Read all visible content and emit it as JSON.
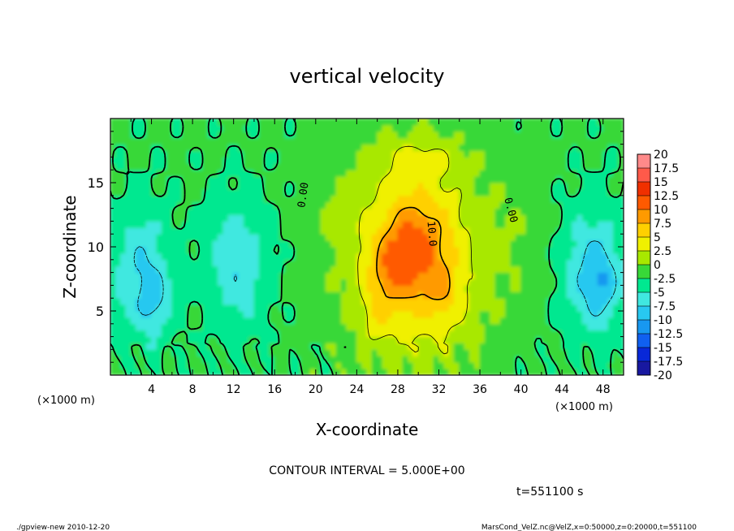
{
  "chart_data": {
    "type": "heatmap",
    "title": "vertical velocity",
    "xlabel": "X-coordinate",
    "ylabel": "Z-coordinate",
    "x_unit_left": "(×1000 m)",
    "x_unit_right": "(×1000 m)",
    "xlim": [
      0,
      50
    ],
    "ylim": [
      0,
      20
    ],
    "x_ticks": [
      4,
      8,
      12,
      16,
      20,
      24,
      28,
      32,
      36,
      40,
      44,
      48
    ],
    "y_ticks": [
      5,
      10,
      15
    ],
    "contour_interval_text": "CONTOUR INTERVAL = 5.000E+00",
    "time_text": "t=551100 s",
    "footer_left": "./gpview-new  2010-12-20",
    "footer_right": "MarsCond_VelZ.nc@VelZ,x=0:50000,z=0:20000,t=551100",
    "contour_labels": [
      {
        "text": "0.00",
        "x": 19.1,
        "z": 14.0,
        "angle": -82
      },
      {
        "text": "0.00",
        "x": 38.7,
        "z": 12.8,
        "angle": 75
      },
      {
        "text": "10.0",
        "x": 31.0,
        "z": 11.0,
        "angle": 85
      }
    ],
    "colorbar": {
      "labels": [
        "20",
        "17.5",
        "15",
        "12.5",
        "10",
        "7.5",
        "5",
        "2.5",
        "0",
        "-2.5",
        "-5",
        "-7.5",
        "-10",
        "-12.5",
        "-15",
        "-17.5",
        "-20"
      ],
      "colors": [
        "#ff8a8a",
        "#ff5a4a",
        "#f03000",
        "#ff5a00",
        "#ff9a00",
        "#ffd000",
        "#f0f000",
        "#a8e800",
        "#38d838",
        "#00e890",
        "#40e8e0",
        "#28c8f0",
        "#1898f0",
        "#1060f0",
        "#0828d8",
        "#1818a0",
        "#6a10b0"
      ]
    },
    "field_blobs": [
      {
        "x": 30.0,
        "z": 9.0,
        "rx": 7.0,
        "ry": 8.5,
        "amp": 7.5
      },
      {
        "x": 29.5,
        "z": 10.0,
        "rx": 3.2,
        "ry": 4.0,
        "amp": 6.5
      },
      {
        "x": 27.0,
        "z": 8.0,
        "rx": 2.0,
        "ry": 2.5,
        "amp": 3.5
      },
      {
        "x": 32.5,
        "z": 6.5,
        "rx": 1.5,
        "ry": 2.0,
        "amp": 3.0
      },
      {
        "x": 26.0,
        "z": 4.5,
        "rx": 1.2,
        "ry": 2.0,
        "amp": 3.0
      },
      {
        "x": 30.0,
        "z": 17.0,
        "rx": 4.0,
        "ry": 1.5,
        "amp": 2.5
      },
      {
        "x": 3.0,
        "z": 8.0,
        "rx": 3.0,
        "ry": 5.0,
        "amp": -5.5
      },
      {
        "x": 4.5,
        "z": 5.5,
        "rx": 1.5,
        "ry": 2.5,
        "amp": -3.0
      },
      {
        "x": 12.5,
        "z": 8.5,
        "rx": 3.0,
        "ry": 5.0,
        "amp": -5.0
      },
      {
        "x": 47.0,
        "z": 8.0,
        "rx": 3.0,
        "ry": 5.0,
        "amp": -6.0
      },
      {
        "x": 48.0,
        "z": 7.0,
        "rx": 1.5,
        "ry": 2.5,
        "amp": -3.0
      },
      {
        "x": 22.0,
        "z": 13.0,
        "rx": 2.5,
        "ry": 4.0,
        "amp": 1.2
      },
      {
        "x": 40.0,
        "z": 11.0,
        "rx": 2.5,
        "ry": 5.0,
        "amp": 1.2
      }
    ]
  }
}
